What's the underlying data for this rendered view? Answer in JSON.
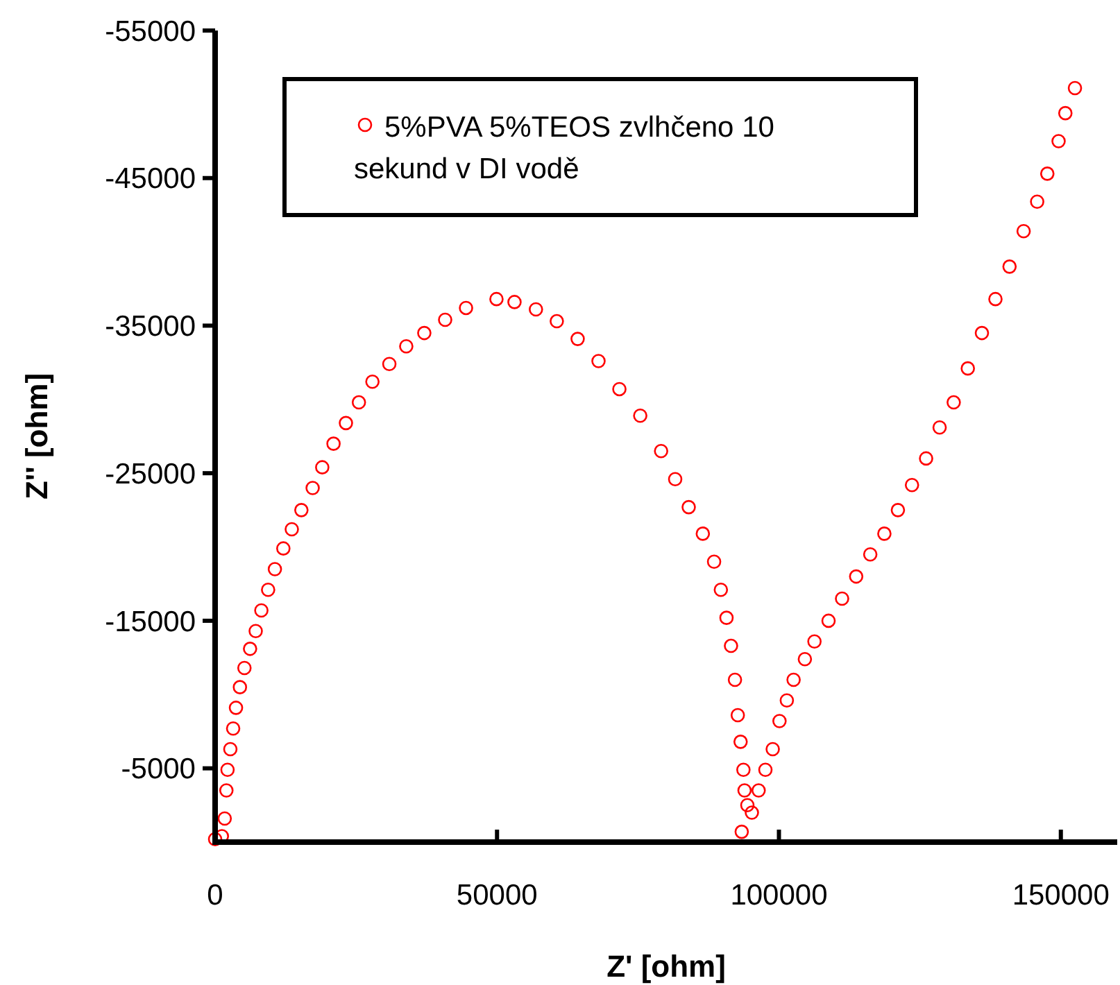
{
  "chart_data": {
    "type": "scatter",
    "xlabel": "Z' [ohm]",
    "ylabel": "Z'' [ohm]",
    "xlim": [
      0,
      160000
    ],
    "xticks": [
      0,
      50000,
      100000,
      150000
    ],
    "ylim": [
      0,
      -55000
    ],
    "yticks": [
      -55000,
      -45000,
      -35000,
      -25000,
      -15000,
      -5000
    ],
    "grid": false,
    "legend": "top",
    "marker": "circle",
    "series": [
      {
        "name": "5%PVA 5%TEOS zvlhčeno 10 sekund v DI vodě",
        "color": "#ff0000",
        "x": [
          0,
          1200,
          1700,
          2000,
          2200,
          2700,
          3200,
          3700,
          4400,
          5200,
          6200,
          7200,
          8200,
          9400,
          10600,
          12100,
          13600,
          15300,
          17300,
          19000,
          21000,
          23200,
          25500,
          27900,
          30900,
          33900,
          37100,
          40800,
          44500,
          49900,
          53100,
          56900,
          60600,
          64300,
          68000,
          71700,
          75400,
          79100,
          81600,
          84000,
          86500,
          88500,
          89700,
          90700,
          91500,
          92200,
          92700,
          93200,
          93700,
          93900,
          94400,
          95200,
          93400,
          96400,
          97600,
          98900,
          100100,
          101400,
          102600,
          104600,
          106300,
          108800,
          111200,
          113700,
          116200,
          118700,
          121100,
          123600,
          126100,
          128500,
          131000,
          133500,
          136000,
          138400,
          140900,
          143400,
          145800,
          147600,
          149600,
          150800,
          152500
        ],
        "values": [
          -200,
          -400,
          -1600,
          -3500,
          -4900,
          -6300,
          -7700,
          -9100,
          -10500,
          -11800,
          -13100,
          -14300,
          -15700,
          -17100,
          -18500,
          -19900,
          -21200,
          -22500,
          -24000,
          -25400,
          -27000,
          -28400,
          -29800,
          -31200,
          -32400,
          -33600,
          -34500,
          -35400,
          -36200,
          -36800,
          -36600,
          -36100,
          -35300,
          -34100,
          -32600,
          -30700,
          -28900,
          -26500,
          -24600,
          -22700,
          -20900,
          -19000,
          -17100,
          -15200,
          -13300,
          -11000,
          -8600,
          -6800,
          -4900,
          -3500,
          -2500,
          -2000,
          -700,
          -3500,
          -4900,
          -6300,
          -8200,
          -9600,
          -11000,
          -12400,
          -13600,
          -15000,
          -16500,
          -18000,
          -19500,
          -20900,
          -22500,
          -24200,
          -26000,
          -28100,
          -29800,
          -32100,
          -34500,
          -36800,
          -39000,
          -41400,
          -43400,
          -45300,
          -47500,
          -49400,
          -51100
        ]
      }
    ]
  }
}
